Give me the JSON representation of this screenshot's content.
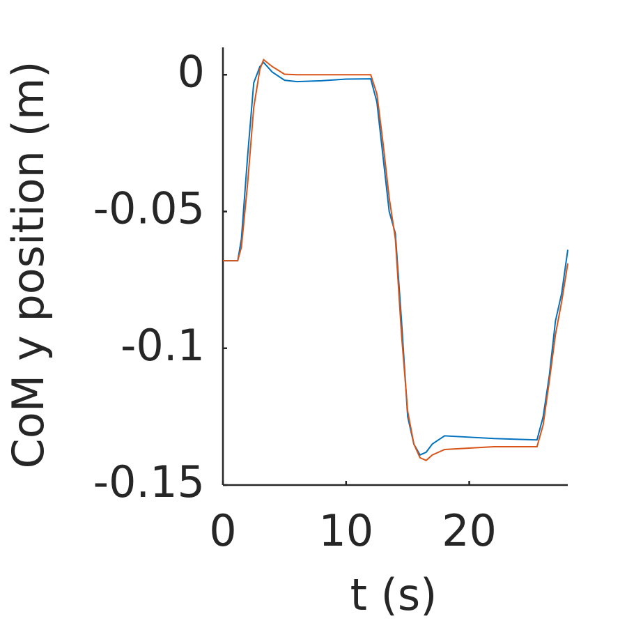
{
  "chart_data": {
    "type": "line",
    "xlabel": "t (s)",
    "ylabel": "CoM y position (m)",
    "x": [
      0,
      1.2,
      1.5,
      2,
      2.5,
      3,
      3.3,
      4,
      5,
      6,
      8,
      10,
      12,
      12.5,
      13,
      13.5,
      14,
      14.5,
      15,
      15.5,
      16,
      16.5,
      17,
      18,
      20,
      22,
      25.5,
      26,
      26.5,
      27,
      27.5,
      28
    ],
    "series": [
      {
        "color": "#0072bd",
        "values": [
          -0.068,
          -0.068,
          -0.06,
          -0.03,
          -0.003,
          0.003,
          0.0045,
          0.001,
          -0.002,
          -0.0025,
          -0.0022,
          -0.0016,
          -0.0015,
          -0.01,
          -0.03,
          -0.05,
          -0.058,
          -0.09,
          -0.125,
          -0.135,
          -0.139,
          -0.138,
          -0.135,
          -0.132,
          -0.1325,
          -0.133,
          -0.1335,
          -0.125,
          -0.11,
          -0.09,
          -0.08,
          -0.064
        ]
      },
      {
        "color": "#d95319",
        "values": [
          -0.068,
          -0.068,
          -0.063,
          -0.04,
          -0.012,
          0.002,
          0.0055,
          0.003,
          0.0002,
          0,
          0,
          0,
          0,
          -0.007,
          -0.025,
          -0.045,
          -0.06,
          -0.095,
          -0.123,
          -0.135,
          -0.14,
          -0.141,
          -0.139,
          -0.137,
          -0.1365,
          -0.136,
          -0.136,
          -0.128,
          -0.112,
          -0.095,
          -0.083,
          -0.069
        ]
      }
    ],
    "xlim": [
      0,
      28
    ],
    "xticks": [
      0,
      10,
      20
    ],
    "ylim": [
      -0.15,
      0.01
    ],
    "yticks": [
      -0.15,
      -0.1,
      -0.05,
      0
    ]
  }
}
